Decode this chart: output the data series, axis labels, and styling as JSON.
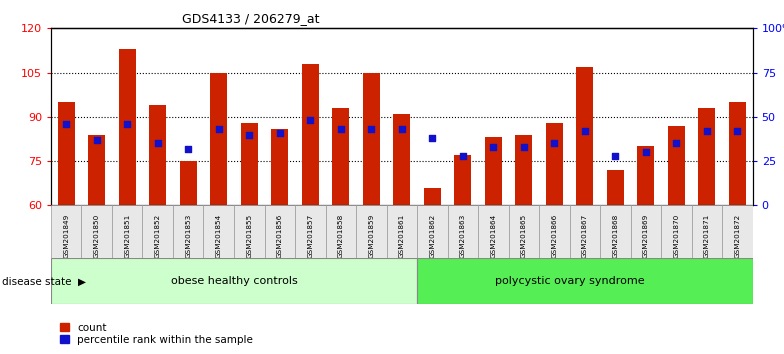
{
  "title": "GDS4133 / 206279_at",
  "samples": [
    "GSM201849",
    "GSM201850",
    "GSM201851",
    "GSM201852",
    "GSM201853",
    "GSM201854",
    "GSM201855",
    "GSM201856",
    "GSM201857",
    "GSM201858",
    "GSM201859",
    "GSM201861",
    "GSM201862",
    "GSM201863",
    "GSM201864",
    "GSM201865",
    "GSM201866",
    "GSM201867",
    "GSM201868",
    "GSM201869",
    "GSM201870",
    "GSM201871",
    "GSM201872"
  ],
  "counts": [
    95,
    84,
    113,
    94,
    75,
    105,
    88,
    86,
    108,
    93,
    105,
    91,
    66,
    77,
    83,
    84,
    88,
    107,
    72,
    80,
    87,
    93,
    95
  ],
  "percentiles": [
    46,
    37,
    46,
    35,
    32,
    43,
    40,
    41,
    48,
    43,
    43,
    43,
    38,
    28,
    33,
    33,
    35,
    42,
    28,
    30,
    35,
    42,
    42
  ],
  "group1_label": "obese healthy controls",
  "group1_count": 12,
  "group2_label": "polycystic ovary syndrome",
  "group2_count": 11,
  "ylim_left": [
    60,
    120
  ],
  "yticks_left": [
    60,
    75,
    90,
    105,
    120
  ],
  "ylim_right": [
    0,
    100
  ],
  "yticks_right": [
    0,
    25,
    50,
    75,
    100
  ],
  "bar_color": "#CC2200",
  "dot_color": "#1111CC",
  "group1_bg": "#CCFFCC",
  "group2_bg": "#55EE55",
  "bar_width": 0.55,
  "disease_state_label": "disease state"
}
